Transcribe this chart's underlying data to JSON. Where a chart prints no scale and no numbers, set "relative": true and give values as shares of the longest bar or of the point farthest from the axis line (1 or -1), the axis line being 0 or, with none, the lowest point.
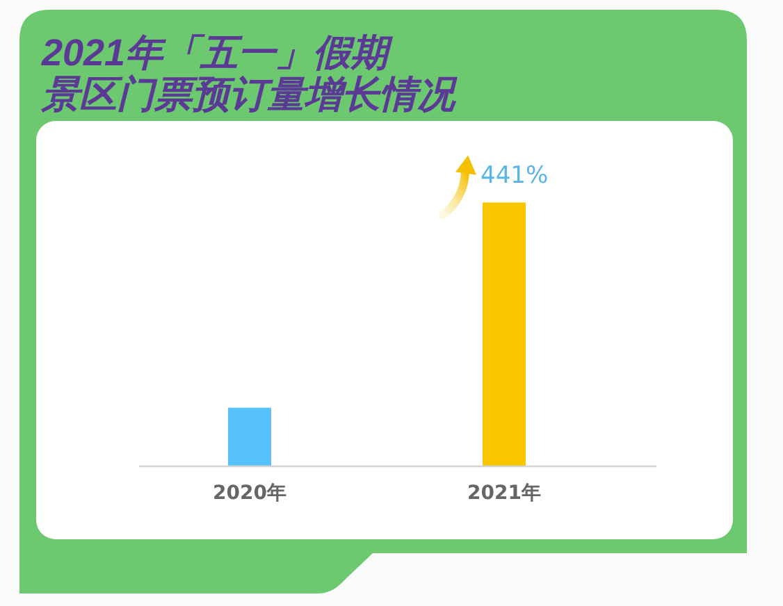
{
  "chart_data": {
    "type": "bar",
    "title": "2021年「五一」假期",
    "subtitle": "景区门票预订量增长情况",
    "categories": [
      "2020年",
      "2021年"
    ],
    "values": [
      0.22,
      1
    ],
    "colors": [
      "#56c1fa",
      "#f8c700"
    ],
    "relative": true,
    "annotations": [
      {
        "text": "441%",
        "x": "2021年",
        "y": 1
      }
    ]
  }
}
